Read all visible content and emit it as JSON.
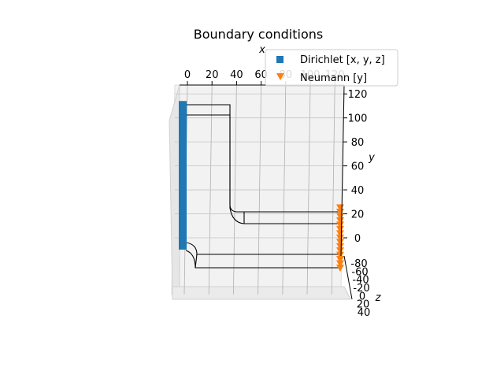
{
  "chart_data": {
    "type": "scatter",
    "projection": "3d",
    "title": "Boundary conditions",
    "xlabel": "x",
    "ylabel": "y",
    "zlabel": "z",
    "x_ticks": [
      "0",
      "20",
      "40",
      "60",
      "80",
      "100",
      "120"
    ],
    "y_ticks": [
      "0",
      "20",
      "40",
      "60",
      "80",
      "100",
      "120"
    ],
    "z_ticks": [
      "-80",
      "-60",
      "-40",
      "-20",
      "0",
      "20",
      "40"
    ],
    "xlim": [
      0,
      120
    ],
    "ylim": [
      -20,
      125
    ],
    "zlim": [
      -80,
      40
    ],
    "grid": true,
    "legend_position": "top-right",
    "series": [
      {
        "name": "Dirichlet  [x, y, z]",
        "marker": "square",
        "color": "#1f77b4",
        "points": [
          {
            "x": 0,
            "y": -15
          },
          {
            "x": 0,
            "y": -10
          },
          {
            "x": 0,
            "y": -5
          },
          {
            "x": 0,
            "y": 0
          },
          {
            "x": 0,
            "y": 5
          },
          {
            "x": 0,
            "y": 10
          },
          {
            "x": 0,
            "y": 15
          },
          {
            "x": 0,
            "y": 20
          },
          {
            "x": 0,
            "y": 25
          },
          {
            "x": 0,
            "y": 30
          },
          {
            "x": 0,
            "y": 35
          },
          {
            "x": 0,
            "y": 40
          },
          {
            "x": 0,
            "y": 45
          },
          {
            "x": 0,
            "y": 50
          },
          {
            "x": 0,
            "y": 55
          },
          {
            "x": 0,
            "y": 60
          },
          {
            "x": 0,
            "y": 65
          },
          {
            "x": 0,
            "y": 70
          },
          {
            "x": 0,
            "y": 75
          },
          {
            "x": 0,
            "y": 80
          },
          {
            "x": 0,
            "y": 85
          },
          {
            "x": 0,
            "y": 90
          },
          {
            "x": 0,
            "y": 95
          },
          {
            "x": 0,
            "y": 100
          },
          {
            "x": 0,
            "y": 105
          },
          {
            "x": 0,
            "y": 110
          }
        ]
      },
      {
        "name": "Neumann  [y]",
        "marker": "triangle-down",
        "color": "#ff7f0e",
        "points": [
          {
            "x": 120,
            "y": -20
          },
          {
            "x": 120,
            "y": -17
          },
          {
            "x": 120,
            "y": -14
          },
          {
            "x": 120,
            "y": -11
          },
          {
            "x": 120,
            "y": -8
          },
          {
            "x": 120,
            "y": -5
          },
          {
            "x": 120,
            "y": -2
          },
          {
            "x": 120,
            "y": 1
          },
          {
            "x": 120,
            "y": 4
          },
          {
            "x": 120,
            "y": 7
          },
          {
            "x": 120,
            "y": 10
          },
          {
            "x": 120,
            "y": 13
          },
          {
            "x": 120,
            "y": 16
          },
          {
            "x": 120,
            "y": 19
          },
          {
            "x": 120,
            "y": 22
          }
        ]
      }
    ]
  }
}
